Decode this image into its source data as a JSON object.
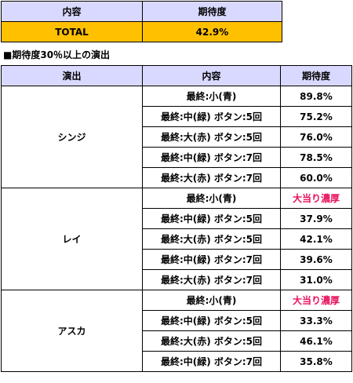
{
  "summary": {
    "headers": [
      "内容",
      "期待度"
    ],
    "row": {
      "label": "TOTAL",
      "value": "42.9%"
    }
  },
  "section_title": "■期待度30％以上の演出",
  "detail": {
    "headers": [
      "演出",
      "内容",
      "期待度"
    ],
    "groups": [
      {
        "name": "シンジ",
        "rows": [
          {
            "content": "最終:小(青)",
            "value": "89.8%",
            "hot": false
          },
          {
            "content": "最終:中(緑) ボタン:5回",
            "value": "75.2%",
            "hot": false
          },
          {
            "content": "最終:大(赤) ボタン:5回",
            "value": "76.0%",
            "hot": false
          },
          {
            "content": "最終:中(緑) ボタン:7回",
            "value": "78.5%",
            "hot": false
          },
          {
            "content": "最終:大(赤) ボタン:7回",
            "value": "60.0%",
            "hot": false
          }
        ]
      },
      {
        "name": "レイ",
        "rows": [
          {
            "content": "最終:小(青)",
            "value": "大当り濃厚",
            "hot": true
          },
          {
            "content": "最終:中(緑) ボタン:5回",
            "value": "37.9%",
            "hot": false
          },
          {
            "content": "最終:大(赤) ボタン:5回",
            "value": "42.1%",
            "hot": false
          },
          {
            "content": "最終:中(緑) ボタン:7回",
            "value": "39.6%",
            "hot": false
          },
          {
            "content": "最終:大(赤) ボタン:7回",
            "value": "31.0%",
            "hot": false
          }
        ]
      },
      {
        "name": "アスカ",
        "rows": [
          {
            "content": "最終:小(青)",
            "value": "大当り濃厚",
            "hot": true
          },
          {
            "content": "最終:中(緑) ボタン:5回",
            "value": "33.3%",
            "hot": false
          },
          {
            "content": "最終:大(赤) ボタン:5回",
            "value": "46.1%",
            "hot": false
          },
          {
            "content": "最終:中(緑) ボタン:7回",
            "value": "35.8%",
            "hot": false
          }
        ]
      }
    ]
  },
  "colors": {
    "header_bg": "#d9d9ff",
    "total_bg": "#ffc000",
    "hot_text": "#e8115e"
  }
}
